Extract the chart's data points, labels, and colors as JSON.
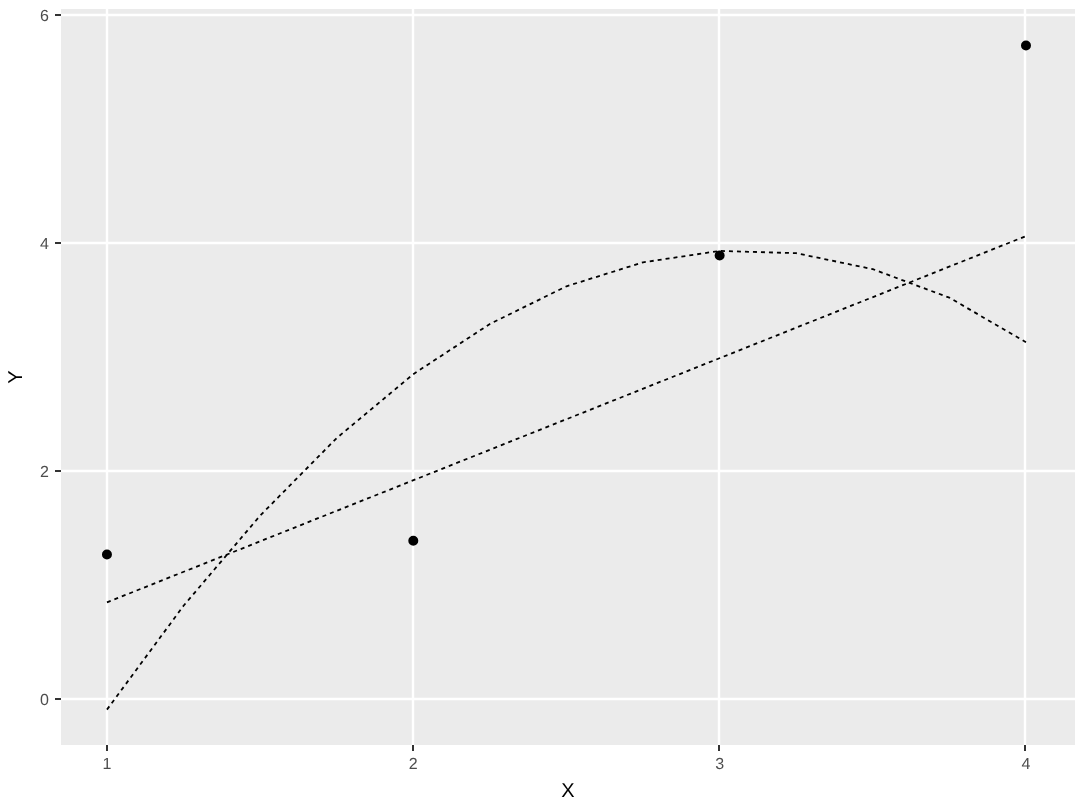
{
  "chart_data": {
    "type": "line",
    "xlabel": "X",
    "ylabel": "Y",
    "xlim": [
      0.85,
      4.16
    ],
    "ylim": [
      -0.4,
      6.05
    ],
    "xticks": [
      1,
      2,
      3,
      4
    ],
    "yticks": [
      0,
      2,
      4,
      6
    ],
    "grid": true,
    "line_style": "dashed",
    "series": [
      {
        "type": "scatter",
        "marker": "circle",
        "color": "#000000",
        "x": [
          1,
          2,
          3,
          4
        ],
        "values": [
          1.27,
          1.39,
          3.89,
          5.73
        ]
      },
      {
        "color": "#000000",
        "x": [
          1,
          4
        ],
        "values": [
          0.85,
          4.06
        ]
      },
      {
        "color": "#000000",
        "x": [
          1,
          1.25,
          1.5,
          1.75,
          2,
          2.25,
          2.5,
          2.75,
          3,
          3.25,
          3.5,
          3.75,
          4
        ],
        "values": [
          -0.09,
          0.82,
          1.61,
          2.29,
          2.85,
          3.29,
          3.62,
          3.83,
          3.93,
          3.91,
          3.77,
          3.52,
          3.13
        ]
      }
    ]
  }
}
